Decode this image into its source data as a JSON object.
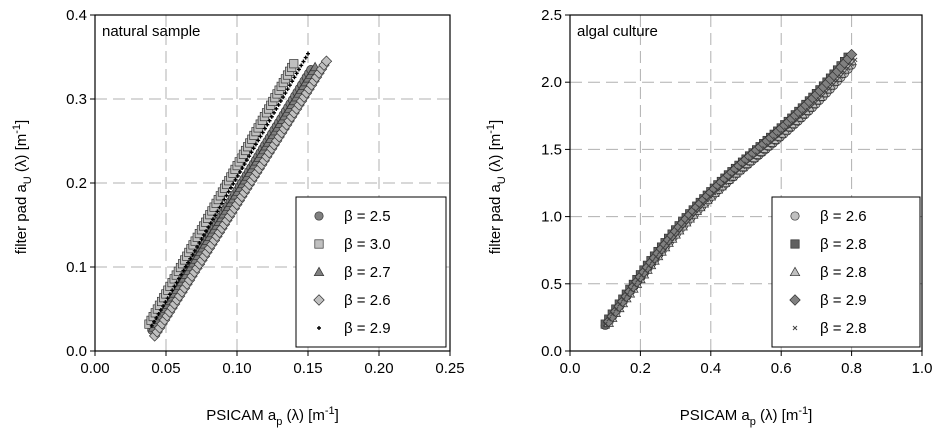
{
  "chart_data": [
    {
      "type": "scatter",
      "panel_label": "natural sample",
      "xlabel": "PSICAM a",
      "xlabel_sub": "p",
      "xlabel_tail": " (λ) [m",
      "xlabel_sup": "-1",
      "xlabel_end": "]",
      "ylabel": "filter pad a",
      "ylabel_sub": "U",
      "ylabel_tail": " (λ) [m",
      "ylabel_sup": "-1",
      "ylabel_end": "]",
      "xlim": [
        0,
        0.25
      ],
      "ylim": [
        0,
        0.4
      ],
      "xticks": [
        "0.00",
        "0.05",
        "0.10",
        "0.15",
        "0.20",
        "0.25"
      ],
      "yticks": [
        "0.0",
        "0.1",
        "0.2",
        "0.3",
        "0.4"
      ],
      "grid": true,
      "legend_position": "bottom-right",
      "series": [
        {
          "name": "β = 2.5",
          "marker": "circle",
          "color": "#808080",
          "x0": 0.04,
          "y0": 0.025,
          "x1": 0.152,
          "y1": 0.335
        },
        {
          "name": "β = 3.0",
          "marker": "square",
          "color": "#c0c0c0",
          "x0": 0.038,
          "y0": 0.032,
          "x1": 0.14,
          "y1": 0.342
        },
        {
          "name": "β = 2.7",
          "marker": "triangle",
          "color": "#808080",
          "x0": 0.041,
          "y0": 0.028,
          "x1": 0.155,
          "y1": 0.338
        },
        {
          "name": "β = 2.6",
          "marker": "diamond",
          "color": "#c0c0c0",
          "x0": 0.042,
          "y0": 0.018,
          "x1": 0.163,
          "y1": 0.345
        },
        {
          "name": "β = 2.9",
          "marker": "plus",
          "color": "#000000",
          "x0": 0.04,
          "y0": 0.03,
          "x1": 0.15,
          "y1": 0.354
        }
      ]
    },
    {
      "type": "scatter",
      "panel_label": "algal culture",
      "xlabel": "PSICAM a",
      "xlabel_sub": "p",
      "xlabel_tail": " (λ) [m",
      "xlabel_sup": "-1",
      "xlabel_end": "]",
      "ylabel": "filter pad a",
      "ylabel_sub": "U",
      "ylabel_tail": " (λ) [m",
      "ylabel_sup": "-1",
      "ylabel_end": "]",
      "xlim": [
        0,
        1.0
      ],
      "ylim": [
        0,
        2.5
      ],
      "xticks": [
        "0.0",
        "0.2",
        "0.4",
        "0.6",
        "0.8",
        "1.0"
      ],
      "yticks": [
        "0.0",
        "0.5",
        "1.0",
        "1.5",
        "2.0",
        "2.5"
      ],
      "grid": true,
      "legend_position": "bottom-right",
      "series": [
        {
          "name": "β = 2.6",
          "marker": "circle",
          "color": "#c0c0c0",
          "x0": 0.1,
          "y0": 0.19,
          "x1": 0.8,
          "y1": 2.22
        },
        {
          "name": "β = 2.8",
          "marker": "square",
          "color": "#606060",
          "x0": 0.1,
          "y0": 0.2,
          "x1": 0.79,
          "y1": 2.28
        },
        {
          "name": "β = 2.8",
          "marker": "triangle",
          "color": "#c0c0c0",
          "x0": 0.11,
          "y0": 0.21,
          "x1": 0.8,
          "y1": 2.25
        },
        {
          "name": "β = 2.9",
          "marker": "diamond",
          "color": "#808080",
          "x0": 0.11,
          "y0": 0.22,
          "x1": 0.8,
          "y1": 2.3
        },
        {
          "name": "β = 2.8",
          "marker": "cross",
          "color": "#404040",
          "x0": 0.1,
          "y0": 0.2,
          "x1": 0.81,
          "y1": 2.26
        }
      ]
    }
  ]
}
